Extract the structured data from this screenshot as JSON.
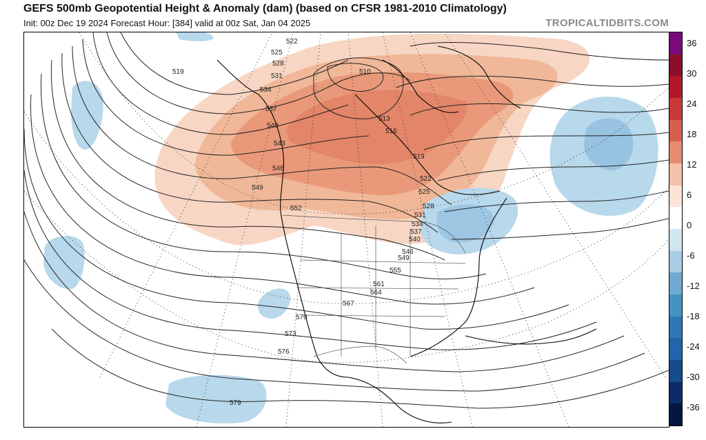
{
  "header": {
    "title": "GEFS 500mb Geopotential Height & Anomaly (dam) (based on CFSR 1981-2010 Climatology)",
    "subtitle": "Init: 00z Dec 19 2024   Forecast Hour: [384]   valid at 00z Sat, Jan 04 2025",
    "watermark": "TROPICALTIDBITS.COM"
  },
  "colorbar": {
    "labels": [
      "36",
      "30",
      "24",
      "18",
      "12",
      "6",
      "0",
      "-6",
      "-12",
      "-18",
      "-24",
      "-30",
      "-36"
    ],
    "colors": [
      "#7a0a7a",
      "#8b0f2a",
      "#b2182b",
      "#c83a3a",
      "#d6604d",
      "#e58b70",
      "#f4c2a8",
      "#fbe3d6",
      "#ffffff",
      "#d1e5f0",
      "#a8cde4",
      "#6ea9d1",
      "#4393c3",
      "#2f78b3",
      "#2166ac",
      "#154c8c",
      "#0b2c66",
      "#051640"
    ]
  },
  "contours": {
    "labels": [
      "519",
      "522",
      "525",
      "528",
      "531",
      "534",
      "537",
      "540",
      "543",
      "546",
      "549",
      "552",
      "555",
      "561",
      "564",
      "567",
      "570",
      "573",
      "576",
      "579",
      "510",
      "513",
      "516",
      "519",
      "522",
      "525",
      "528",
      "531",
      "534",
      "537",
      "540",
      "546",
      "549"
    ]
  },
  "anomaly_colors": {
    "positive_light": "#f6d2bf",
    "positive_mid": "#eeb091",
    "positive_strong": "#e68f6d",
    "negative_light": "#b6d7ea",
    "negative_mid": "#95c2e0"
  }
}
